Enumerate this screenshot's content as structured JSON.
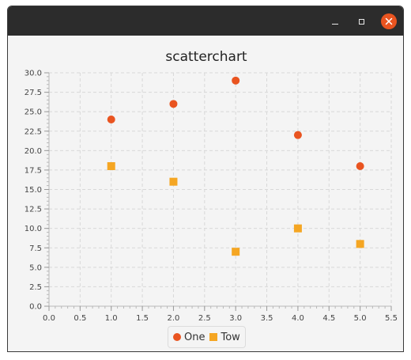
{
  "window": {
    "controls": {
      "minimize": "minimize-icon",
      "maximize": "maximize-icon",
      "close": "close-icon"
    }
  },
  "chart_data": {
    "type": "scatter",
    "title": "scatterchart",
    "xlabel": "",
    "ylabel": "",
    "xlim": [
      0,
      5.5
    ],
    "ylim": [
      0,
      30
    ],
    "x_ticks": [
      "0.0",
      "0.5",
      "1.0",
      "1.5",
      "2.0",
      "2.5",
      "3.0",
      "3.5",
      "4.0",
      "4.5",
      "5.0",
      "5.5"
    ],
    "y_ticks": [
      "0.0",
      "2.5",
      "5.0",
      "7.5",
      "10.0",
      "12.5",
      "15.0",
      "17.5",
      "20.0",
      "22.5",
      "25.0",
      "27.5",
      "30.0"
    ],
    "grid": true,
    "legend_position": "bottom-center",
    "series": [
      {
        "name": "One",
        "color": "#e95420",
        "marker": "circle",
        "points": [
          {
            "x": 1,
            "y": 24
          },
          {
            "x": 2,
            "y": 26
          },
          {
            "x": 3,
            "y": 29
          },
          {
            "x": 4,
            "y": 22
          },
          {
            "x": 5,
            "y": 18
          }
        ]
      },
      {
        "name": "Tow",
        "color": "#f5a623",
        "marker": "square",
        "points": [
          {
            "x": 1,
            "y": 18
          },
          {
            "x": 2,
            "y": 16
          },
          {
            "x": 3,
            "y": 7
          },
          {
            "x": 4,
            "y": 10
          },
          {
            "x": 5,
            "y": 8
          }
        ]
      }
    ]
  }
}
